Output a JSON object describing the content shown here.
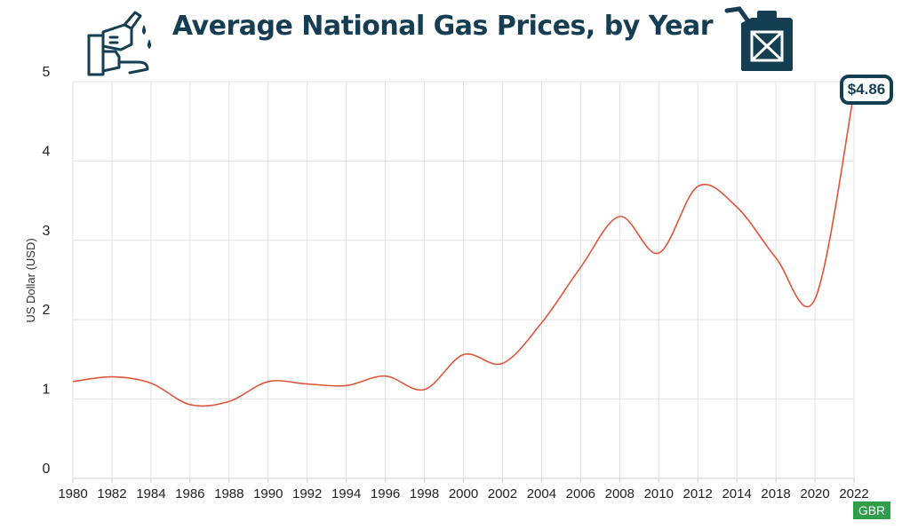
{
  "header": {
    "title": "Average National Gas Prices, by Year",
    "left_icon": "gas-pump-nozzle-icon",
    "right_icon": "jerry-can-icon"
  },
  "annotation": {
    "latest_value_label": "$4.86"
  },
  "brand": {
    "label": "GBR"
  },
  "colors": {
    "title": "#153e52",
    "line": "#e0553a",
    "grid": "#e2e2e2",
    "brand": "#2e9e4a"
  },
  "chart_data": {
    "type": "line",
    "title": "Average National Gas Prices, by Year",
    "ylabel": "US Dollar (USD)",
    "xlabel": "",
    "ylim": [
      0,
      5
    ],
    "yticks": [
      0,
      1,
      2,
      3,
      4,
      5
    ],
    "grid": true,
    "x": [
      "1980",
      "1982",
      "1984",
      "1986",
      "1988",
      "1990",
      "1992",
      "1994",
      "1996",
      "1998",
      "2000",
      "2002",
      "2004",
      "2006",
      "2008",
      "2010",
      "2012",
      "2014",
      "2018",
      "2020",
      "2022"
    ],
    "series": [
      {
        "values": [
          1.22,
          1.28,
          1.2,
          0.93,
          0.97,
          1.22,
          1.19,
          1.17,
          1.29,
          1.12,
          1.56,
          1.45,
          1.96,
          2.66,
          3.3,
          2.84,
          3.68,
          3.42,
          2.78,
          2.26,
          4.86
        ]
      }
    ]
  }
}
